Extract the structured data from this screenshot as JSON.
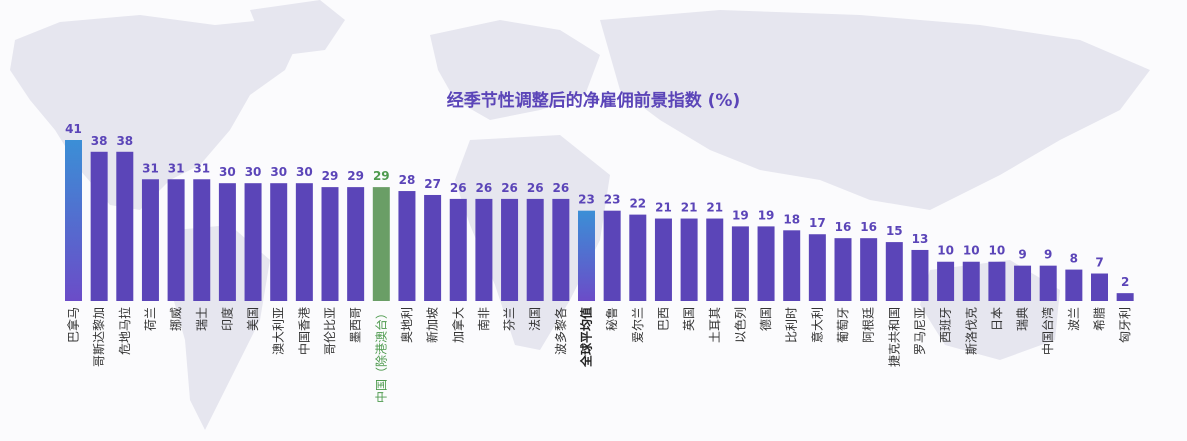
{
  "title": "经季节性调整后的净雇佣前景指数 (%)",
  "colors": {
    "bar": "#5b45b8",
    "highlight_top": "#3b8fd6",
    "highlight_bottom": "#6b4cc8",
    "china": "#6a9e66",
    "map": "#e4e4ee"
  },
  "chart_data": {
    "type": "bar",
    "title": "经季节性调整后的净雇佣前景指数 (%)",
    "xlabel": "",
    "ylabel": "",
    "ylim": [
      0,
      41
    ],
    "grid": false,
    "categories": [
      "巴拿马",
      "哥斯达黎加",
      "危地马拉",
      "荷兰",
      "挪威",
      "瑞士",
      "印度",
      "美国",
      "澳大利亚",
      "中国香港",
      "哥伦比亚",
      "墨西哥",
      "中国（除港澳台）",
      "奥地利",
      "新加坡",
      "加拿大",
      "南非",
      "芬兰",
      "法国",
      "波多黎各",
      "全球平均值",
      "秘鲁",
      "爱尔兰",
      "巴西",
      "英国",
      "土耳其",
      "以色列",
      "德国",
      "比利时",
      "意大利",
      "葡萄牙",
      "阿根廷",
      "捷克共和国",
      "罗马尼亚",
      "西班牙",
      "斯洛伐克",
      "日本",
      "瑞典",
      "中国台湾",
      "波兰",
      "希腊",
      "匈牙利"
    ],
    "values": [
      41,
      38,
      38,
      31,
      31,
      31,
      30,
      30,
      30,
      30,
      29,
      29,
      29,
      28,
      27,
      26,
      26,
      26,
      26,
      26,
      23,
      23,
      22,
      21,
      21,
      21,
      19,
      19,
      18,
      17,
      16,
      16,
      15,
      13,
      10,
      10,
      10,
      9,
      9,
      8,
      7,
      2
    ],
    "highlight": {
      "巴拿马": "gradient",
      "全球平均值": "gradient",
      "中国（除港澳台）": "green"
    }
  }
}
